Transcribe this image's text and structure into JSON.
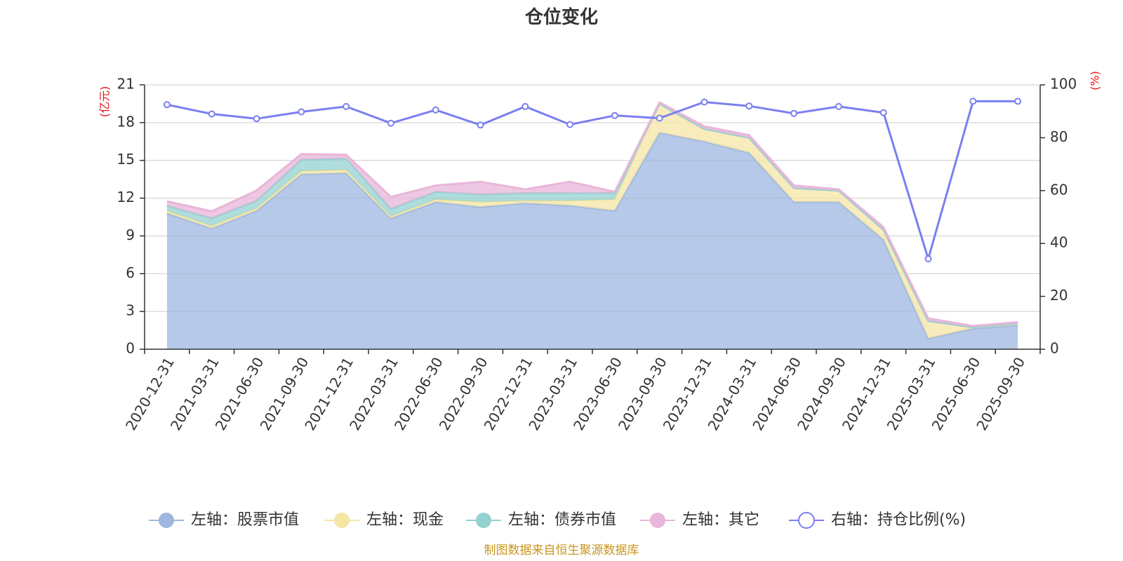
{
  "chart_data": {
    "type": "area",
    "title": "仓位变化",
    "categories": [
      "2020-12-31",
      "2021-03-31",
      "2021-06-30",
      "2021-09-30",
      "2021-12-31",
      "2022-03-31",
      "2022-06-30",
      "2022-09-30",
      "2022-12-31",
      "2023-03-31",
      "2023-06-30",
      "2023-09-30",
      "2023-12-31",
      "2024-03-31",
      "2024-06-30",
      "2024-09-30",
      "2024-12-31",
      "2025-03-31",
      "2025-06-30",
      "2025-09-30"
    ],
    "left_axis": {
      "unit": "(亿元)",
      "ylim": [
        0,
        21
      ],
      "ticks": [
        0,
        3,
        6,
        9,
        12,
        15,
        18,
        21
      ]
    },
    "right_axis": {
      "unit": "(%)",
      "ylim": [
        0,
        100
      ],
      "ticks": [
        0,
        20,
        40,
        60,
        80,
        100
      ]
    },
    "stacked_series": [
      {
        "name": "左轴：股票市值",
        "color": "#9db7e0",
        "values": [
          10.8,
          9.6,
          11.0,
          13.9,
          14.0,
          10.4,
          11.7,
          11.3,
          11.6,
          11.4,
          11.0,
          17.2,
          16.5,
          15.6,
          11.7,
          11.7,
          8.7,
          0.85,
          1.65,
          1.9
        ]
      },
      {
        "name": "左轴：现金",
        "color": "#f5e5a5",
        "values": [
          0.2,
          0.2,
          0.2,
          0.25,
          0.25,
          0.15,
          0.2,
          0.4,
          0.2,
          0.4,
          0.9,
          2.3,
          1.0,
          1.2,
          1.1,
          0.9,
          0.8,
          1.4,
          0.1,
          0.15
        ]
      },
      {
        "name": "左轴：债券市值",
        "color": "#94d1d1",
        "values": [
          0.4,
          0.6,
          0.6,
          0.9,
          0.9,
          0.6,
          0.6,
          0.6,
          0.6,
          0.6,
          0.5,
          0,
          0,
          0,
          0,
          0,
          0,
          0,
          0,
          0
        ]
      },
      {
        "name": "左轴：其它",
        "color": "#e8b6d9",
        "values": [
          0.35,
          0.55,
          0.8,
          0.45,
          0.3,
          0.95,
          0.5,
          1.0,
          0.3,
          0.9,
          0.1,
          0.1,
          0.2,
          0.2,
          0.2,
          0.1,
          0.2,
          0.2,
          0.1,
          0.1
        ]
      }
    ],
    "line_series": {
      "name": "右轴：持仓比例(%)",
      "color": "#7b7ff0",
      "values": [
        92.5,
        89.0,
        87.2,
        89.8,
        91.8,
        85.5,
        90.5,
        84.8,
        91.8,
        85.0,
        88.4,
        87.4,
        93.5,
        92.0,
        89.2,
        91.8,
        89.5,
        34.2,
        93.8,
        93.8
      ]
    },
    "grid": true,
    "legend_position": "bottom"
  },
  "footer": {
    "source": "制图数据来自恒生聚源数据库"
  }
}
